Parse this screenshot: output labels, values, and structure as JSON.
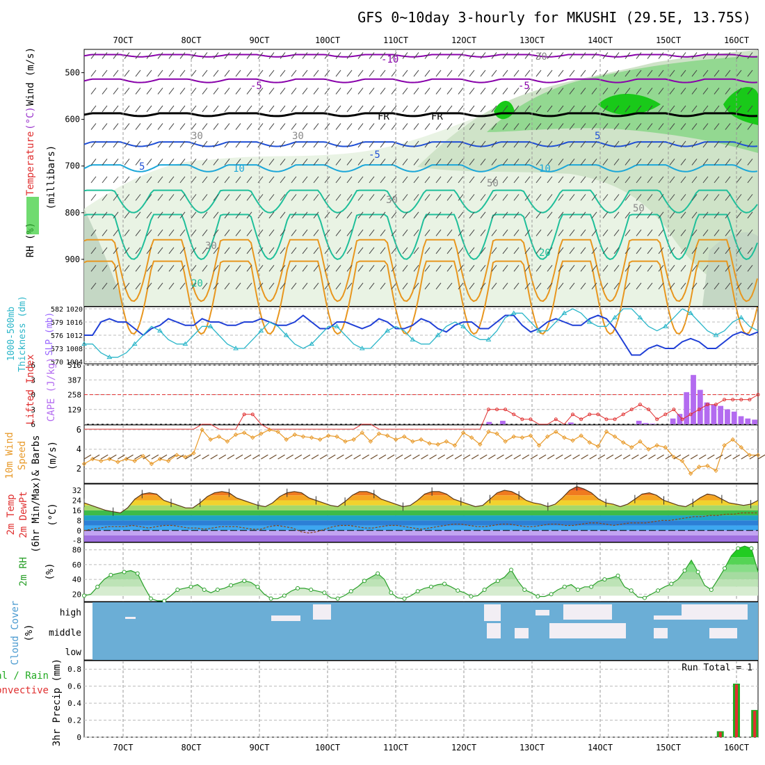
{
  "title": "GFS 0~10day 3-hourly for MKUSHI (29.5E, 13.75S)",
  "time_axis": {
    "labels": [
      "7OCT",
      "8OCT",
      "9OCT",
      "10OCT",
      "11OCT",
      "12OCT",
      "13OCT",
      "14OCT",
      "15OCT",
      "16OCT"
    ]
  },
  "colors": {
    "rh_green": "#33cc33",
    "temp_purple": "#8800aa",
    "temp_blue": "#1f4fd6",
    "temp_cyan": "#1ba7d9",
    "temp_teal": "#1fbf9a",
    "temp_orange": "#e8961e",
    "slp_blue": "#1f3fd6",
    "thick_cyan": "#2bb6c9",
    "li_red": "#e03030",
    "cape_purple": "#b36bf0",
    "wind_orange": "#e89a2a",
    "barb_brown": "#6b4a2a",
    "rh2m_green": "#2aa02a",
    "cloud_blue": "#6baed6",
    "precip_green": "#22aa22",
    "precip_red": "#e03030"
  },
  "panel_labels": {
    "upper": {
      "rh": "RH (%)",
      "temperature": "Temperature",
      "unit_c": "(°C)",
      "wind": "Wind (m/s)",
      "millibars": "(millibars)"
    },
    "thickness": {
      "thick_line1": "1000-500mb",
      "thick_line2": "Thickness (dm)",
      "slp": "SLP (mb)"
    },
    "stability": {
      "li": "Lifted Index",
      "cape": "CAPE (J/kg)"
    },
    "wind10m": {
      "line1": "10m Wind",
      "line2": "Speed",
      "line3": "& Barbs",
      "unit": "(m/s)"
    },
    "temp2m": {
      "line1": "2m Temp",
      "line2": "2m DewPt",
      "line3": "(6hr Min/Max)",
      "unit": "(°C)"
    },
    "rh2m": {
      "line1": "2m RH",
      "unit": "(%)"
    },
    "cloud": {
      "line1": "Cloud Cover",
      "unit": "(%)"
    },
    "precip": {
      "line1": "Total / Rain",
      "line2": "Convective",
      "line3": "3hr Precip (mm)",
      "run_total": "Run Total = 1"
    }
  },
  "contour_labels": [
    "-10",
    "-5",
    "-5",
    "FR",
    "-5",
    "5",
    "5",
    "10",
    "10",
    "20",
    "20",
    "30",
    "30",
    "30",
    "50",
    "50",
    "30",
    "30",
    "FR"
  ],
  "chart_data": [
    {
      "type": "heatmap",
      "name": "Upper air cross-section",
      "yticks": [
        500,
        600,
        700,
        800,
        900
      ],
      "ylim": [
        1000,
        450
      ]
    },
    {
      "type": "line",
      "name": "SLP and Thickness",
      "left_ticks": [
        570,
        573,
        576,
        579,
        582
      ],
      "right_ticks": [
        1004,
        1008,
        1012,
        1016,
        1020
      ],
      "slp": [
        1012,
        1012,
        1016,
        1017,
        1016,
        1016,
        1014,
        1012,
        1014,
        1015,
        1017,
        1016,
        1015,
        1015,
        1017,
        1016,
        1016,
        1015,
        1015,
        1016,
        1016,
        1017,
        1016,
        1015,
        1015,
        1016,
        1018,
        1016,
        1014,
        1014,
        1016,
        1016,
        1015,
        1014,
        1015,
        1017,
        1016,
        1014,
        1014,
        1015,
        1017,
        1016,
        1014,
        1013,
        1015,
        1016,
        1016,
        1014,
        1014,
        1016,
        1018,
        1018,
        1015,
        1013,
        1014,
        1016,
        1017,
        1016,
        1015,
        1015,
        1017,
        1018,
        1017,
        1014,
        1010,
        1006,
        1006,
        1008,
        1009,
        1008,
        1008,
        1010,
        1011,
        1010,
        1008,
        1008,
        1010,
        1012,
        1013,
        1012,
        1013
      ],
      "thickness": [
        574,
        574,
        572,
        571,
        571,
        572,
        574,
        576,
        578,
        577,
        575,
        574,
        574,
        576,
        578,
        578,
        576,
        574,
        573,
        573,
        575,
        577,
        579,
        578,
        576,
        574,
        573,
        574,
        576,
        578,
        578,
        576,
        574,
        573,
        573,
        575,
        577,
        578,
        577,
        575,
        574,
        574,
        576,
        578,
        579,
        578,
        576,
        575,
        575,
        577,
        580,
        581,
        581,
        579,
        577,
        577,
        579,
        581,
        582,
        581,
        579,
        578,
        578,
        580,
        582,
        582,
        580,
        578,
        577,
        578,
        580,
        582,
        581,
        579,
        577,
        576,
        577,
        579,
        580,
        578,
        577
      ]
    },
    {
      "type": "line",
      "name": "Lifted Index and CAPE",
      "li_ticks": [
        -6,
        -3,
        0,
        3,
        6
      ],
      "cape_ticks": [
        129,
        258,
        387,
        516
      ],
      "li": [
        7,
        7,
        7,
        7,
        7,
        7,
        7,
        7,
        7,
        7,
        7,
        7,
        7,
        7,
        6,
        6,
        7,
        7,
        7,
        4,
        4,
        6,
        7,
        7,
        7,
        7,
        7,
        7,
        7,
        7,
        7,
        7,
        7,
        6,
        6,
        7,
        7,
        7,
        7,
        7,
        7,
        7,
        7,
        7,
        7,
        7,
        7,
        7,
        3,
        3,
        3,
        4,
        5,
        5,
        6,
        6,
        5,
        6,
        4,
        5,
        4,
        4,
        5,
        5,
        4,
        3,
        2,
        3,
        5,
        4,
        3,
        5,
        4,
        3,
        2,
        2,
        1,
        1,
        1,
        1,
        0
      ],
      "cape": [
        0,
        0,
        0,
        0,
        0,
        0,
        0,
        0,
        0,
        0,
        0,
        0,
        0,
        0,
        0,
        0,
        0,
        0,
        0,
        0,
        0,
        0,
        0,
        0,
        0,
        0,
        0,
        0,
        0,
        0,
        0,
        0,
        0,
        0,
        0,
        0,
        0,
        0,
        0,
        0,
        0,
        0,
        0,
        0,
        0,
        0,
        0,
        0,
        0,
        0,
        0,
        0,
        0,
        0,
        0,
        0,
        0,
        0,
        0,
        20,
        0,
        30,
        0,
        0,
        0,
        0,
        0,
        0,
        0,
        0,
        0,
        15,
        0,
        0,
        0,
        0,
        0,
        0,
        0,
        0,
        0,
        30,
        10,
        5,
        0,
        0,
        50,
        90,
        280,
        430,
        300,
        190,
        170,
        160,
        130,
        110,
        70,
        50,
        40
      ]
    },
    {
      "type": "line",
      "name": "10m Wind Speed",
      "yticks": [
        2,
        4,
        6
      ],
      "speed": [
        2.5,
        3,
        2.8,
        3,
        2.7,
        3,
        2.8,
        3.3,
        2.5,
        3,
        2.8,
        3.4,
        3.2,
        3.6,
        6,
        5,
        5.3,
        4.8,
        5.5,
        5.7,
        5.2,
        5.6,
        6,
        5.8,
        5,
        5.5,
        5.3,
        5.2,
        5,
        5.4,
        5.3,
        4.8,
        5,
        5.7,
        4.8,
        5.6,
        5.4,
        5,
        5.3,
        4.8,
        5,
        4.6,
        4.5,
        4.8,
        4.4,
        5.7,
        5.2,
        4.5,
        5.8,
        5.6,
        4.8,
        5.3,
        5.2,
        5.4,
        4.4,
        5.3,
        5.8,
        5.2,
        4.9,
        5.4,
        4.7,
        4.3,
        5.8,
        5.3,
        4.7,
        4.2,
        4.8,
        4,
        4.4,
        4.2,
        3.2,
        2.8,
        1.5,
        2.2,
        2.3,
        1.8,
        4.4,
        5,
        4.2,
        3.4,
        3.4
      ]
    },
    {
      "type": "area",
      "name": "2m Temp and DewPt",
      "yticks": [
        -8,
        0,
        8,
        16,
        24,
        32
      ],
      "temp": [
        22,
        20,
        18,
        16,
        15,
        14,
        18,
        25,
        29,
        30,
        29,
        24,
        22,
        20,
        18,
        18,
        22,
        27,
        30,
        31,
        30,
        26,
        24,
        22,
        20,
        19,
        22,
        27,
        30,
        31,
        30,
        26,
        24,
        22,
        20,
        19,
        23,
        28,
        31,
        31,
        29,
        25,
        23,
        21,
        19,
        20,
        24,
        29,
        31,
        31,
        29,
        25,
        23,
        21,
        19,
        20,
        25,
        30,
        32,
        31,
        28,
        24,
        22,
        21,
        19,
        21,
        26,
        32,
        35,
        33,
        30,
        25,
        22,
        21,
        19,
        21,
        25,
        29,
        30,
        28,
        24,
        22,
        20,
        19,
        22,
        26,
        29,
        28,
        25,
        22,
        21,
        20,
        21,
        24
      ],
      "dewpt": [
        0,
        1,
        2,
        3,
        3,
        3,
        4,
        3,
        2,
        3,
        4,
        4,
        3,
        2,
        2,
        1,
        2,
        3,
        3,
        3,
        2,
        1,
        1,
        3,
        4,
        3,
        2,
        -1,
        -2,
        -1,
        1,
        3,
        4,
        4,
        3,
        2,
        2,
        3,
        4,
        4,
        3,
        2,
        1,
        2,
        3,
        4,
        5,
        5,
        4,
        3,
        3,
        4,
        5,
        5,
        4,
        3,
        3,
        4,
        5,
        5,
        4,
        4,
        5,
        6,
        6,
        5,
        4,
        5,
        6,
        6,
        6,
        7,
        8,
        8,
        9,
        10,
        11,
        11,
        12,
        12,
        13,
        13,
        14,
        14,
        14
      ]
    },
    {
      "type": "area",
      "name": "2m RH",
      "yticks": [
        20,
        40,
        60,
        80
      ],
      "rh": [
        18,
        20,
        30,
        40,
        46,
        48,
        50,
        52,
        48,
        30,
        14,
        11,
        11,
        18,
        26,
        28,
        30,
        33,
        26,
        22,
        26,
        28,
        32,
        35,
        38,
        36,
        30,
        20,
        14,
        14,
        18,
        24,
        28,
        28,
        26,
        24,
        22,
        15,
        14,
        18,
        24,
        30,
        38,
        43,
        48,
        40,
        22,
        15,
        14,
        18,
        24,
        28,
        30,
        33,
        34,
        30,
        25,
        22,
        17,
        18,
        26,
        33,
        38,
        43,
        53,
        38,
        26,
        22,
        17,
        17,
        20,
        26,
        30,
        33,
        26,
        30,
        30,
        37,
        40,
        42,
        45,
        30,
        25,
        16,
        15,
        20,
        25,
        30,
        34,
        40,
        52,
        66,
        50,
        32,
        26,
        40,
        55,
        72,
        82,
        85,
        82,
        50
      ]
    },
    {
      "type": "heatmap",
      "name": "Cloud Cover",
      "rows": [
        "high",
        "middle",
        "low"
      ]
    },
    {
      "type": "bar",
      "name": "3hr Precip",
      "yticks": [
        0,
        0.2,
        0.4,
        0.6,
        0.8
      ],
      "ylim": [
        0,
        0.9
      ],
      "bars": [
        {
          "at": 0.944,
          "total": 0.07,
          "convective": 0.06
        },
        {
          "at": 0.968,
          "total": 0.63,
          "convective": 0.62
        },
        {
          "at": 0.995,
          "total": 0.32,
          "convective": 0.31
        }
      ]
    }
  ]
}
